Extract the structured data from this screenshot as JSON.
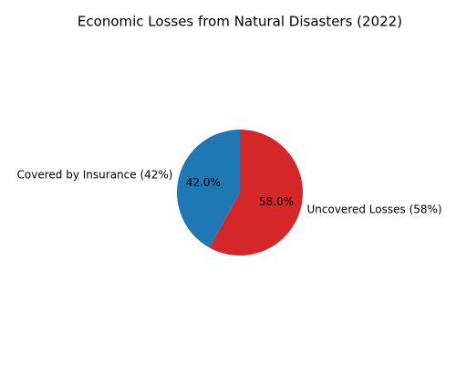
{
  "chart_data": {
    "type": "pie",
    "title": "Economic Losses from Natural Disasters (2022)",
    "categories": [
      "Covered by Insurance (42%)",
      "Uncovered Losses (58%)"
    ],
    "values": [
      42,
      58
    ],
    "value_labels": [
      "42.0%",
      "58.0%"
    ],
    "colors": [
      "#1f77b4",
      "#d62728"
    ]
  }
}
